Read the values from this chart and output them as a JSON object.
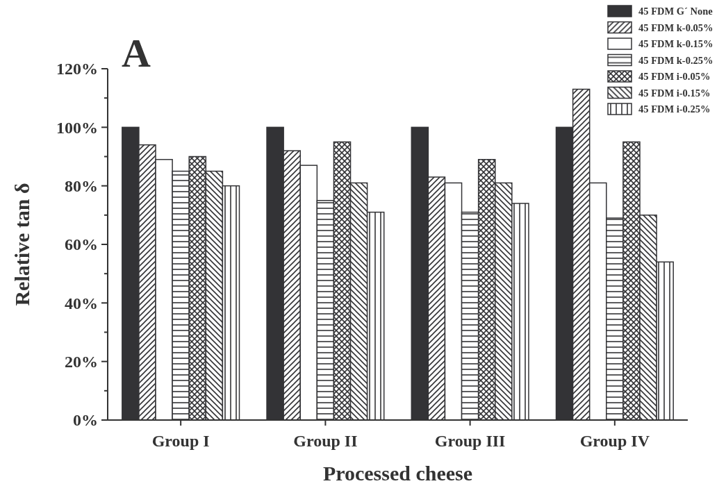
{
  "chart_data": {
    "type": "bar",
    "xlabel": "Processed cheese",
    "ylabel": "Relative tan δ",
    "annotations": [
      "A"
    ],
    "categories": [
      "Group I",
      "Group II",
      "Group III",
      "Group IV"
    ],
    "series": [
      {
        "name": "45 FDM G´ None",
        "color": "#333336",
        "values": [
          100,
          100,
          100,
          100
        ]
      },
      {
        "name": "45 FDM k-0.05%",
        "color": "#333336",
        "values": [
          94,
          92,
          83,
          113
        ]
      },
      {
        "name": "45 FDM k-0.15%",
        "color": "#333336",
        "values": [
          89,
          87,
          81,
          81
        ]
      },
      {
        "name": "45 FDM k-0.25%",
        "color": "#333336",
        "values": [
          85,
          75,
          71,
          69
        ]
      },
      {
        "name": "45 FDM i-0.05%",
        "color": "#333336",
        "values": [
          90,
          95,
          89,
          95
        ]
      },
      {
        "name": "45 FDM i-0.15%",
        "color": "#333336",
        "values": [
          85,
          81,
          81,
          70
        ]
      },
      {
        "name": "45 FDM i-0.25%",
        "color": "#333336",
        "values": [
          80,
          71,
          74,
          54
        ]
      }
    ],
    "ylim": [
      0,
      120
    ],
    "yticks": [
      {
        "value": 0,
        "label": "0%"
      },
      {
        "value": 10,
        "label": null
      },
      {
        "value": 20,
        "label": "20%"
      },
      {
        "value": 30,
        "label": null
      },
      {
        "value": 40,
        "label": "40%"
      },
      {
        "value": 50,
        "label": null
      },
      {
        "value": 60,
        "label": "60%"
      },
      {
        "value": 70,
        "label": null
      },
      {
        "value": 80,
        "label": "80%"
      },
      {
        "value": 90,
        "label": null
      },
      {
        "value": 100,
        "label": "100%"
      },
      {
        "value": 110,
        "label": null
      },
      {
        "value": 120,
        "label": "120%"
      }
    ],
    "legend": "top right"
  }
}
